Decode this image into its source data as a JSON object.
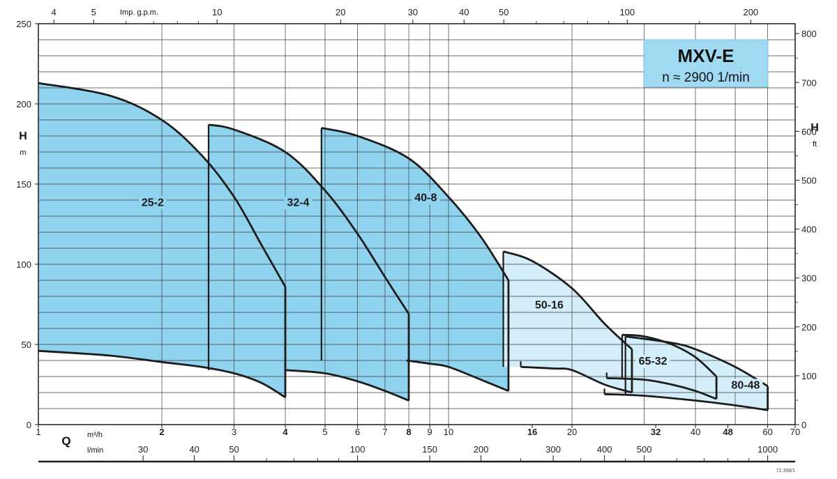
{
  "info_box": {
    "title": "MXV-E",
    "subtitle": "n ≈ 2900 1/min",
    "fill": "#9fd9f2"
  },
  "colors": {
    "dark_fill": "#8fd3ef",
    "light_fill": "#d3eef9",
    "line": "#1c1c1c",
    "grid": "#3a3a3a"
  },
  "chart_data": {
    "type": "area",
    "x_scale": "log",
    "xlim": [
      1,
      70
    ],
    "ylim": [
      0,
      250
    ],
    "y_unit": {
      "symbol": "H",
      "unit": "m"
    },
    "y2_unit": {
      "symbol": "H",
      "unit": "ft"
    },
    "x_unit": {
      "symbol": "Q",
      "unit_primary": "m³/h",
      "unit_secondary": "l/min",
      "unit_top": "Imp. g.p.m."
    },
    "grid": true,
    "y_ticks": [
      "0",
      "50",
      "100",
      "150",
      "200",
      "250"
    ],
    "y2_ticks": [
      "0",
      "100",
      "200",
      "300",
      "400",
      "500",
      "600",
      "700",
      "800"
    ],
    "x_ticks": [
      {
        "v": 1,
        "label": "1",
        "bold": false
      },
      {
        "v": 2,
        "label": "2",
        "bold": true
      },
      {
        "v": 3,
        "label": "3",
        "bold": false
      },
      {
        "v": 4,
        "label": "4",
        "bold": true
      },
      {
        "v": 5,
        "label": "5",
        "bold": false
      },
      {
        "v": 6,
        "label": "6",
        "bold": false
      },
      {
        "v": 7,
        "label": "7",
        "bold": false
      },
      {
        "v": 8,
        "label": "8",
        "bold": true
      },
      {
        "v": 9,
        "label": "9",
        "bold": false
      },
      {
        "v": 10,
        "label": "10",
        "bold": false
      },
      {
        "v": 16,
        "label": "16",
        "bold": true
      },
      {
        "v": 20,
        "label": "20",
        "bold": false
      },
      {
        "v": 32,
        "label": "32",
        "bold": true
      },
      {
        "v": 40,
        "label": "40",
        "bold": false
      },
      {
        "v": 48,
        "label": "48",
        "bold": true
      },
      {
        "v": 60,
        "label": "60",
        "bold": false
      },
      {
        "v": 70,
        "label": "70",
        "bold": false
      }
    ],
    "lmin_ticks": [
      {
        "v": 30,
        "label": "30"
      },
      {
        "v": 40,
        "label": "40"
      },
      {
        "v": 50,
        "label": "50"
      },
      {
        "v": 100,
        "label": "100"
      },
      {
        "v": 150,
        "label": "150"
      },
      {
        "v": 200,
        "label": "200"
      },
      {
        "v": 300,
        "label": "300"
      },
      {
        "v": 400,
        "label": "400"
      },
      {
        "v": 500,
        "label": "500"
      },
      {
        "v": 1000,
        "label": "1000"
      }
    ],
    "gpm_ticks": [
      {
        "v": 4,
        "label": "4"
      },
      {
        "v": 5,
        "label": "5"
      },
      {
        "v": 10,
        "label": "10"
      },
      {
        "v": 20,
        "label": "20"
      },
      {
        "v": 30,
        "label": "30"
      },
      {
        "v": 40,
        "label": "40"
      },
      {
        "v": 50,
        "label": "50"
      },
      {
        "v": 100,
        "label": "100"
      },
      {
        "v": 200,
        "label": "200"
      }
    ],
    "series": [
      {
        "name": "25-2",
        "shade": "dark",
        "top": [
          [
            1,
            213
          ],
          [
            1.5,
            205
          ],
          [
            2,
            190
          ],
          [
            2.5,
            168
          ],
          [
            3,
            142
          ],
          [
            3.5,
            112
          ],
          [
            4,
            86
          ]
        ],
        "bottom": [
          [
            1,
            46
          ],
          [
            1.5,
            43
          ],
          [
            2,
            39
          ],
          [
            2.5,
            36
          ],
          [
            3,
            32
          ],
          [
            3.5,
            26
          ],
          [
            4,
            17
          ]
        ],
        "label_at": [
          1.9,
          139
        ]
      },
      {
        "name": "32-4",
        "shade": "dark",
        "top": [
          [
            2.6,
            187
          ],
          [
            3,
            184
          ],
          [
            4,
            170
          ],
          [
            5,
            146
          ],
          [
            6,
            119
          ],
          [
            7,
            92
          ],
          [
            8,
            69
          ]
        ],
        "bottom": [
          [
            4,
            34
          ],
          [
            5,
            32
          ],
          [
            6,
            27
          ],
          [
            7,
            21
          ],
          [
            8,
            15
          ]
        ],
        "label_at": [
          4.3,
          139
        ]
      },
      {
        "name": "40-8",
        "shade": "dark",
        "top": [
          [
            4.9,
            185
          ],
          [
            6,
            180
          ],
          [
            8,
            166
          ],
          [
            10,
            142
          ],
          [
            12,
            117
          ],
          [
            14,
            90
          ]
        ],
        "bottom": [
          [
            7.9,
            40
          ],
          [
            9,
            38
          ],
          [
            10,
            36
          ],
          [
            12,
            28
          ],
          [
            14,
            21
          ]
        ],
        "label_at": [
          8.8,
          142
        ]
      },
      {
        "name": "50-16",
        "shade": "light",
        "top": [
          [
            13.6,
            108
          ],
          [
            16,
            102
          ],
          [
            20,
            85
          ],
          [
            24,
            63
          ],
          [
            28,
            47
          ]
        ],
        "bottom": [
          [
            15,
            36
          ],
          [
            18,
            35
          ],
          [
            20,
            34
          ],
          [
            24,
            25
          ],
          [
            28,
            20
          ]
        ],
        "label_at": [
          17.6,
          75
        ]
      },
      {
        "name": "65-32",
        "shade": "light",
        "top": [
          [
            26.5,
            56
          ],
          [
            30,
            55
          ],
          [
            35,
            50
          ],
          [
            40,
            42
          ],
          [
            45,
            30
          ]
        ],
        "bottom": [
          [
            24.3,
            29
          ],
          [
            30,
            28
          ],
          [
            35,
            25
          ],
          [
            40,
            21
          ],
          [
            45,
            16
          ]
        ],
        "label_at": [
          31.5,
          40
        ]
      },
      {
        "name": "80-48",
        "shade": "light",
        "top": [
          [
            27,
            55
          ],
          [
            35,
            51
          ],
          [
            40,
            47
          ],
          [
            50,
            36
          ],
          [
            60,
            24
          ]
        ],
        "bottom": [
          [
            24,
            19
          ],
          [
            30,
            18
          ],
          [
            40,
            15
          ],
          [
            50,
            12
          ],
          [
            60,
            9
          ]
        ],
        "label_at": [
          53,
          25
        ]
      }
    ]
  },
  "footer": {
    "code": "72.356/1"
  }
}
